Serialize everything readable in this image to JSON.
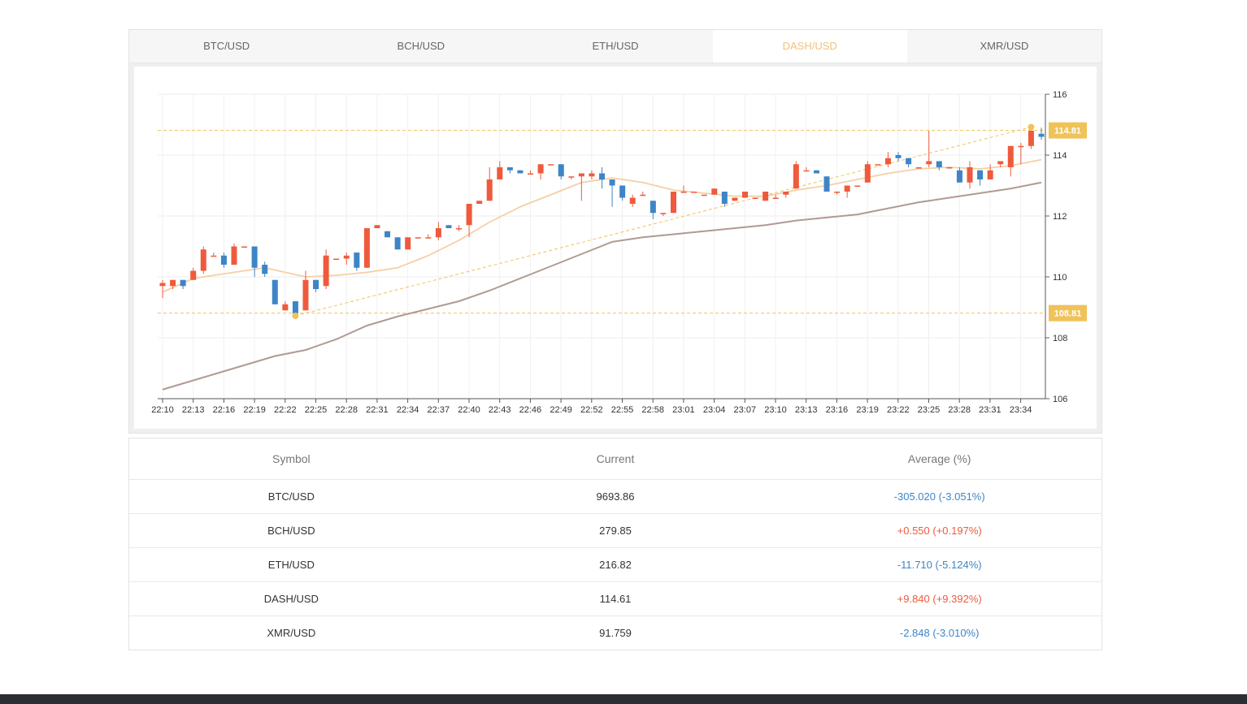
{
  "tabs": [
    {
      "label": "BTC/USD",
      "active": false
    },
    {
      "label": "BCH/USD",
      "active": false
    },
    {
      "label": "ETH/USD",
      "active": false
    },
    {
      "label": "DASH/USD",
      "active": true
    },
    {
      "label": "XMR/USD",
      "active": false
    }
  ],
  "colors": {
    "up": "#ef5a3c",
    "down": "#3d85c6",
    "ma_short": "#f5cfa6",
    "ma_long": "#b09a93",
    "marker": "#f0c25a",
    "tab_active": "#f0c27b"
  },
  "chart_data": {
    "type": "candlestick",
    "ylim": [
      106,
      116
    ],
    "yticks": [
      106,
      108,
      110,
      112,
      114,
      116
    ],
    "xticks": [
      "22:10",
      "22:13",
      "22:16",
      "22:19",
      "22:22",
      "22:25",
      "22:28",
      "22:31",
      "22:34",
      "22:37",
      "22:40",
      "22:43",
      "22:46",
      "22:49",
      "22:52",
      "22:55",
      "22:58",
      "23:01",
      "23:04",
      "23:07",
      "23:10",
      "23:13",
      "23:16",
      "23:19",
      "23:22",
      "23:25",
      "23:28",
      "23:31",
      "23:34"
    ],
    "max_label": "114.81",
    "min_label": "108.81",
    "max_value": 114.81,
    "min_value": 108.81,
    "candles": [
      [
        109.7,
        109.8,
        109.3,
        109.9
      ],
      [
        109.7,
        109.9,
        109.6,
        109.9
      ],
      [
        109.9,
        109.7,
        109.6,
        109.9
      ],
      [
        109.9,
        110.2,
        109.9,
        110.3
      ],
      [
        110.2,
        110.9,
        110.1,
        111.0
      ],
      [
        110.7,
        110.7,
        110.7,
        110.8
      ],
      [
        110.7,
        110.4,
        110.3,
        110.8
      ],
      [
        110.4,
        111.0,
        110.4,
        111.1
      ],
      [
        111.0,
        111.0,
        111.0,
        111.0
      ],
      [
        111.0,
        110.3,
        110.0,
        111.0
      ],
      [
        110.4,
        110.1,
        110.0,
        110.5
      ],
      [
        109.9,
        109.1,
        109.1,
        109.9
      ],
      [
        108.9,
        109.1,
        108.9,
        109.2
      ],
      [
        109.2,
        108.8,
        108.7,
        109.2
      ],
      [
        108.9,
        109.9,
        108.9,
        110.2
      ],
      [
        109.9,
        109.6,
        109.5,
        109.9
      ],
      [
        109.7,
        110.7,
        109.6,
        110.9
      ],
      [
        110.6,
        110.6,
        110.6,
        110.6
      ],
      [
        110.6,
        110.7,
        110.4,
        110.8
      ],
      [
        110.8,
        110.3,
        110.2,
        110.8
      ],
      [
        110.3,
        111.6,
        110.3,
        111.6
      ],
      [
        111.6,
        111.7,
        111.6,
        111.7
      ],
      [
        111.5,
        111.3,
        111.3,
        111.5
      ],
      [
        111.3,
        110.9,
        110.9,
        111.3
      ],
      [
        110.9,
        111.3,
        110.9,
        111.3
      ],
      [
        111.3,
        111.3,
        111.3,
        111.3
      ],
      [
        111.3,
        111.3,
        111.3,
        111.4
      ],
      [
        111.3,
        111.6,
        111.2,
        111.8
      ],
      [
        111.7,
        111.6,
        111.6,
        111.7
      ],
      [
        111.6,
        111.6,
        111.5,
        111.7
      ],
      [
        111.7,
        112.4,
        111.3,
        112.4
      ],
      [
        112.4,
        112.5,
        112.4,
        112.5
      ],
      [
        112.5,
        113.2,
        112.5,
        113.6
      ],
      [
        113.2,
        113.6,
        113.2,
        113.8
      ],
      [
        113.6,
        113.5,
        113.4,
        113.6
      ],
      [
        113.5,
        113.4,
        113.4,
        113.5
      ],
      [
        113.4,
        113.4,
        113.4,
        113.5
      ],
      [
        113.4,
        113.7,
        113.2,
        113.7
      ],
      [
        113.7,
        113.7,
        113.7,
        113.7
      ],
      [
        113.7,
        113.3,
        113.2,
        113.7
      ],
      [
        113.3,
        113.3,
        113.2,
        113.3
      ],
      [
        113.3,
        113.4,
        112.5,
        113.4
      ],
      [
        113.3,
        113.4,
        113.2,
        113.5
      ],
      [
        113.4,
        113.2,
        112.9,
        113.6
      ],
      [
        113.2,
        113.0,
        112.3,
        113.2
      ],
      [
        113.0,
        112.6,
        112.5,
        113.0
      ],
      [
        112.4,
        112.6,
        112.3,
        112.7
      ],
      [
        112.7,
        112.7,
        112.7,
        112.8
      ],
      [
        112.5,
        112.1,
        111.9,
        112.5
      ],
      [
        112.1,
        112.1,
        112.0,
        112.1
      ],
      [
        112.1,
        112.8,
        112.1,
        112.8
      ],
      [
        112.8,
        112.8,
        112.8,
        113.0
      ],
      [
        112.8,
        112.8,
        112.8,
        112.8
      ],
      [
        112.7,
        112.7,
        112.7,
        112.7
      ],
      [
        112.7,
        112.9,
        112.7,
        112.9
      ],
      [
        112.8,
        112.4,
        112.3,
        112.8
      ],
      [
        112.5,
        112.6,
        112.5,
        112.6
      ],
      [
        112.6,
        112.8,
        112.6,
        112.8
      ],
      [
        112.6,
        112.6,
        112.6,
        112.6
      ],
      [
        112.5,
        112.8,
        112.5,
        112.8
      ],
      [
        112.6,
        112.6,
        112.6,
        112.7
      ],
      [
        112.7,
        112.8,
        112.6,
        112.8
      ],
      [
        112.9,
        113.7,
        112.9,
        113.8
      ],
      [
        113.5,
        113.5,
        113.5,
        113.6
      ],
      [
        113.5,
        113.4,
        113.4,
        113.5
      ],
      [
        113.3,
        112.8,
        112.8,
        113.3
      ],
      [
        112.8,
        112.8,
        112.7,
        112.8
      ],
      [
        112.8,
        113.0,
        112.6,
        113.0
      ],
      [
        113.0,
        113.0,
        113.0,
        113.0
      ],
      [
        113.1,
        113.7,
        113.1,
        113.8
      ],
      [
        113.7,
        113.7,
        113.7,
        113.7
      ],
      [
        113.7,
        113.9,
        113.6,
        114.1
      ],
      [
        114.0,
        113.9,
        113.8,
        114.1
      ],
      [
        113.9,
        113.7,
        113.6,
        113.9
      ],
      [
        113.6,
        113.6,
        113.6,
        113.6
      ],
      [
        113.7,
        113.8,
        113.6,
        114.8
      ],
      [
        113.8,
        113.6,
        113.5,
        113.8
      ],
      [
        113.6,
        113.6,
        113.6,
        113.6
      ],
      [
        113.5,
        113.1,
        113.1,
        113.6
      ],
      [
        113.1,
        113.6,
        112.9,
        113.8
      ],
      [
        113.5,
        113.2,
        113.0,
        113.5
      ],
      [
        113.2,
        113.5,
        113.2,
        113.7
      ],
      [
        113.7,
        113.8,
        113.6,
        113.8
      ],
      [
        113.6,
        114.3,
        113.3,
        114.3
      ],
      [
        114.3,
        114.3,
        113.7,
        114.4
      ],
      [
        114.3,
        114.8,
        114.2,
        114.8
      ],
      [
        114.7,
        114.6,
        114.5,
        114.9
      ]
    ],
    "ma_short": [
      [
        0,
        109.5
      ],
      [
        3,
        109.95
      ],
      [
        8,
        110.2
      ],
      [
        10,
        110.3
      ],
      [
        14,
        110.0
      ],
      [
        17,
        110.05
      ],
      [
        20,
        110.15
      ],
      [
        23,
        110.3
      ],
      [
        26,
        110.7
      ],
      [
        29,
        111.2
      ],
      [
        32,
        111.8
      ],
      [
        35,
        112.3
      ],
      [
        38,
        112.7
      ],
      [
        41,
        113.1
      ],
      [
        44,
        113.25
      ],
      [
        47,
        113.1
      ],
      [
        50,
        112.85
      ],
      [
        53,
        112.75
      ],
      [
        56,
        112.65
      ],
      [
        59,
        112.65
      ],
      [
        62,
        112.85
      ],
      [
        65,
        113.0
      ],
      [
        68,
        113.2
      ],
      [
        71,
        113.4
      ],
      [
        74,
        113.55
      ],
      [
        77,
        113.6
      ],
      [
        80,
        113.55
      ],
      [
        83,
        113.65
      ],
      [
        86,
        113.85
      ]
    ],
    "ma_long": [
      [
        0,
        106.3
      ],
      [
        2,
        106.5
      ],
      [
        5,
        106.8
      ],
      [
        8,
        107.1
      ],
      [
        11,
        107.4
      ],
      [
        14,
        107.6
      ],
      [
        17,
        107.95
      ],
      [
        20,
        108.4
      ],
      [
        23,
        108.7
      ],
      [
        26,
        108.95
      ],
      [
        29,
        109.2
      ],
      [
        32,
        109.55
      ],
      [
        35,
        109.95
      ],
      [
        38,
        110.35
      ],
      [
        41,
        110.75
      ],
      [
        44,
        111.15
      ],
      [
        47,
        111.3
      ],
      [
        50,
        111.4
      ],
      [
        53,
        111.5
      ],
      [
        56,
        111.6
      ],
      [
        59,
        111.7
      ],
      [
        62,
        111.85
      ],
      [
        65,
        111.95
      ],
      [
        68,
        112.05
      ],
      [
        71,
        112.25
      ],
      [
        74,
        112.45
      ],
      [
        77,
        112.6
      ],
      [
        80,
        112.75
      ],
      [
        83,
        112.9
      ],
      [
        86,
        113.1
      ]
    ],
    "trend_from": {
      "i": 13,
      "v": 108.72
    },
    "trend_to": {
      "i": 85,
      "v": 114.92
    }
  },
  "table": {
    "headers": [
      "Symbol",
      "Current",
      "Average (%)"
    ],
    "rows": [
      {
        "symbol": "BTC/USD",
        "current": "9693.86",
        "average": "-305.020 (-3.051%)",
        "dir": "neg"
      },
      {
        "symbol": "BCH/USD",
        "current": "279.85",
        "average": "+0.550 (+0.197%)",
        "dir": "pos"
      },
      {
        "symbol": "ETH/USD",
        "current": "216.82",
        "average": "-11.710 (-5.124%)",
        "dir": "neg"
      },
      {
        "symbol": "DASH/USD",
        "current": "114.61",
        "average": "+9.840 (+9.392%)",
        "dir": "pos"
      },
      {
        "symbol": "XMR/USD",
        "current": "91.759",
        "average": "-2.848 (-3.010%)",
        "dir": "neg"
      }
    ]
  }
}
